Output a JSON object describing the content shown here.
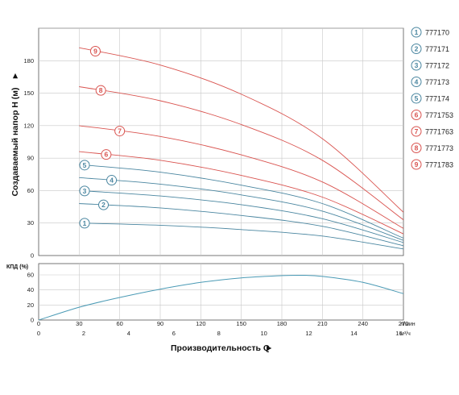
{
  "chart_data": [
    {
      "type": "line",
      "ylabel": "Создаваемый напор H (м)",
      "xlim": [
        0,
        270
      ],
      "ylim": [
        0,
        210
      ],
      "y_ticks": [
        0,
        30,
        60,
        90,
        120,
        150,
        180
      ],
      "grid": true,
      "legend_position": "right",
      "series": [
        {
          "name": "777170",
          "marker": "1",
          "color": "#4a86a0",
          "x": [
            30,
            90,
            150,
            210,
            270
          ],
          "y": [
            30,
            28,
            24,
            18,
            6
          ]
        },
        {
          "name": "777171",
          "marker": "2",
          "color": "#4a86a0",
          "x": [
            30,
            90,
            150,
            210,
            270
          ],
          "y": [
            48,
            44,
            37,
            27,
            9
          ]
        },
        {
          "name": "777172",
          "marker": "3",
          "color": "#4a86a0",
          "x": [
            30,
            90,
            150,
            210,
            270
          ],
          "y": [
            60,
            55,
            47,
            34,
            12
          ]
        },
        {
          "name": "777173",
          "marker": "4",
          "color": "#4a86a0",
          "x": [
            30,
            90,
            150,
            210,
            270
          ],
          "y": [
            72,
            66,
            56,
            41,
            14
          ]
        },
        {
          "name": "777174",
          "marker": "5",
          "color": "#4a86a0",
          "x": [
            30,
            90,
            150,
            210,
            270
          ],
          "y": [
            84,
            77,
            65,
            48,
            16
          ]
        },
        {
          "name": "7771753",
          "marker": "6",
          "color": "#d9534f",
          "x": [
            30,
            90,
            150,
            210,
            270
          ],
          "y": [
            96,
            88,
            74,
            54,
            20
          ]
        },
        {
          "name": "7771763",
          "marker": "7",
          "color": "#d9534f",
          "x": [
            30,
            90,
            150,
            210,
            270
          ],
          "y": [
            120,
            110,
            93,
            68,
            25
          ]
        },
        {
          "name": "7771773",
          "marker": "8",
          "color": "#d9534f",
          "x": [
            30,
            90,
            150,
            210,
            270
          ],
          "y": [
            156,
            143,
            121,
            88,
            33
          ]
        },
        {
          "name": "7771783",
          "marker": "9",
          "color": "#d9534f",
          "x": [
            30,
            90,
            150,
            210,
            270
          ],
          "y": [
            192,
            176,
            149,
            108,
            40
          ]
        }
      ]
    },
    {
      "type": "line",
      "ylabel": "КПД (%)",
      "xlabel": "Производительность Q",
      "xlim": [
        0,
        270
      ],
      "ylim": [
        0,
        75
      ],
      "y_ticks": [
        0,
        20,
        40,
        60
      ],
      "x_ticks_primary": [
        0,
        30,
        60,
        90,
        120,
        150,
        180,
        210,
        240,
        270
      ],
      "x_unit_primary": "л/мин",
      "x_ticks_secondary": [
        0,
        2,
        4,
        6,
        8,
        10,
        12,
        14,
        16
      ],
      "x_unit_secondary": "м³/ч",
      "grid": true,
      "series": [
        {
          "color": "#4a9ab5",
          "x": [
            0,
            30,
            60,
            90,
            120,
            150,
            180,
            195,
            210,
            240,
            270
          ],
          "y": [
            0,
            17,
            30,
            41,
            50,
            56,
            59,
            59.5,
            58,
            50,
            35
          ]
        }
      ]
    }
  ]
}
